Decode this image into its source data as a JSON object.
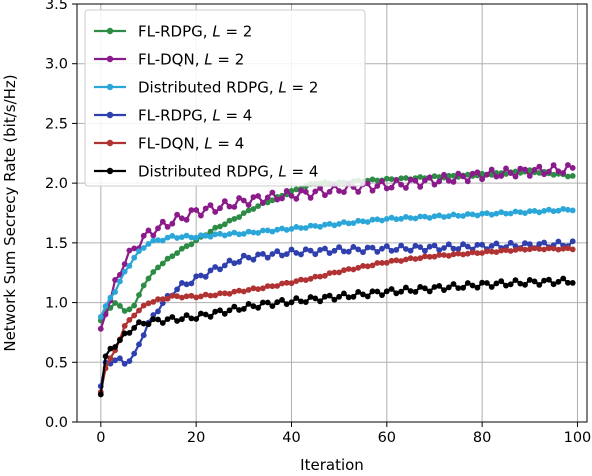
{
  "chart_data": {
    "type": "line",
    "xlabel": "Iteration",
    "ylabel": "Network Sum Secrecy Rate (bit/s/Hz)",
    "xlim": [
      -5,
      102
    ],
    "ylim": [
      0.0,
      3.5
    ],
    "xticks": [
      0,
      20,
      40,
      60,
      80,
      100
    ],
    "xtick_labels": [
      "0",
      "20",
      "40",
      "60",
      "80",
      "100"
    ],
    "yticks": [
      0.0,
      0.5,
      1.0,
      1.5,
      2.0,
      2.5,
      3.0,
      3.5
    ],
    "ytick_labels": [
      "0.0",
      "0.5",
      "1.0",
      "1.5",
      "2.0",
      "2.5",
      "3.0",
      "3.5"
    ],
    "grid": true,
    "legend_position": "top-left",
    "series": [
      {
        "name": "FL-RDPG, L = 2",
        "label_parts": [
          "FL-RDPG, ",
          "L",
          " = 2"
        ],
        "color": "#2e8b45",
        "anchors": [
          [
            0,
            0.85
          ],
          [
            1,
            0.92
          ],
          [
            3,
            1.0
          ],
          [
            5,
            0.93
          ],
          [
            7,
            0.97
          ],
          [
            9,
            1.15
          ],
          [
            12,
            1.3
          ],
          [
            16,
            1.42
          ],
          [
            20,
            1.52
          ],
          [
            24,
            1.62
          ],
          [
            28,
            1.7
          ],
          [
            32,
            1.79
          ],
          [
            36,
            1.86
          ],
          [
            40,
            1.93
          ],
          [
            45,
            2.0
          ],
          [
            50,
            2.0
          ],
          [
            55,
            2.02
          ],
          [
            60,
            2.03
          ],
          [
            70,
            2.05
          ],
          [
            80,
            2.07
          ],
          [
            90,
            2.1
          ],
          [
            99,
            2.06
          ]
        ],
        "noise": 0.035
      },
      {
        "name": "FL-DQN, L = 2",
        "label_parts": [
          "FL-DQN, ",
          "L",
          " = 2"
        ],
        "color": "#8b1a8b",
        "anchors": [
          [
            0,
            0.78
          ],
          [
            1,
            0.9
          ],
          [
            3,
            1.15
          ],
          [
            5,
            1.35
          ],
          [
            7,
            1.45
          ],
          [
            10,
            1.58
          ],
          [
            15,
            1.68
          ],
          [
            20,
            1.76
          ],
          [
            25,
            1.8
          ],
          [
            30,
            1.85
          ],
          [
            35,
            1.88
          ],
          [
            40,
            1.9
          ],
          [
            45,
            1.92
          ],
          [
            50,
            1.95
          ],
          [
            55,
            1.97
          ],
          [
            60,
            1.98
          ],
          [
            70,
            2.02
          ],
          [
            80,
            2.07
          ],
          [
            90,
            2.1
          ],
          [
            99,
            2.12
          ]
        ],
        "noise": 0.04
      },
      {
        "name": "Distributed RDPG, L = 2",
        "label_parts": [
          "Distributed RDPG, ",
          "L",
          " = 2"
        ],
        "color": "#2ba6d8",
        "anchors": [
          [
            0,
            0.88
          ],
          [
            1,
            0.97
          ],
          [
            3,
            1.1
          ],
          [
            5,
            1.25
          ],
          [
            7,
            1.38
          ],
          [
            10,
            1.5
          ],
          [
            15,
            1.55
          ],
          [
            20,
            1.55
          ],
          [
            25,
            1.57
          ],
          [
            30,
            1.58
          ],
          [
            35,
            1.6
          ],
          [
            40,
            1.62
          ],
          [
            45,
            1.64
          ],
          [
            50,
            1.66
          ],
          [
            55,
            1.68
          ],
          [
            60,
            1.7
          ],
          [
            70,
            1.72
          ],
          [
            80,
            1.74
          ],
          [
            90,
            1.76
          ],
          [
            99,
            1.78
          ]
        ],
        "noise": 0.045
      },
      {
        "name": "FL-RDPG, L = 4",
        "label_parts": [
          "FL-RDPG, ",
          "L",
          " = 4"
        ],
        "color": "#2f3fae",
        "anchors": [
          [
            0,
            0.3
          ],
          [
            1,
            0.5
          ],
          [
            3,
            0.52
          ],
          [
            5,
            0.5
          ],
          [
            7,
            0.55
          ],
          [
            9,
            0.75
          ],
          [
            12,
            0.95
          ],
          [
            16,
            1.12
          ],
          [
            20,
            1.2
          ],
          [
            25,
            1.3
          ],
          [
            30,
            1.37
          ],
          [
            35,
            1.4
          ],
          [
            40,
            1.42
          ],
          [
            45,
            1.43
          ],
          [
            50,
            1.44
          ],
          [
            60,
            1.45
          ],
          [
            70,
            1.46
          ],
          [
            80,
            1.47
          ],
          [
            90,
            1.48
          ],
          [
            99,
            1.49
          ]
        ],
        "noise": 0.025
      },
      {
        "name": "FL-DQN, L = 4",
        "label_parts": [
          "FL-DQN, ",
          "L",
          " = 4"
        ],
        "color": "#b03232",
        "anchors": [
          [
            0,
            0.25
          ],
          [
            1,
            0.45
          ],
          [
            3,
            0.6
          ],
          [
            5,
            0.8
          ],
          [
            7,
            0.9
          ],
          [
            10,
            1.0
          ],
          [
            15,
            1.05
          ],
          [
            20,
            1.05
          ],
          [
            25,
            1.07
          ],
          [
            30,
            1.1
          ],
          [
            35,
            1.13
          ],
          [
            40,
            1.17
          ],
          [
            45,
            1.21
          ],
          [
            50,
            1.26
          ],
          [
            55,
            1.3
          ],
          [
            60,
            1.34
          ],
          [
            70,
            1.39
          ],
          [
            80,
            1.42
          ],
          [
            90,
            1.45
          ],
          [
            99,
            1.45
          ]
        ],
        "noise": 0.025
      },
      {
        "name": "Distributed RDPG, L = 4",
        "label_parts": [
          "Distributed RDPG, ",
          "L",
          " = 4"
        ],
        "color": "#000000",
        "anchors": [
          [
            0,
            0.23
          ],
          [
            1,
            0.55
          ],
          [
            3,
            0.65
          ],
          [
            5,
            0.72
          ],
          [
            7,
            0.8
          ],
          [
            10,
            0.84
          ],
          [
            15,
            0.86
          ],
          [
            20,
            0.88
          ],
          [
            25,
            0.92
          ],
          [
            30,
            0.96
          ],
          [
            35,
            0.99
          ],
          [
            40,
            1.01
          ],
          [
            45,
            1.03
          ],
          [
            50,
            1.05
          ],
          [
            55,
            1.07
          ],
          [
            60,
            1.09
          ],
          [
            70,
            1.12
          ],
          [
            80,
            1.15
          ],
          [
            90,
            1.17
          ],
          [
            99,
            1.18
          ]
        ],
        "noise": 0.025
      }
    ]
  }
}
